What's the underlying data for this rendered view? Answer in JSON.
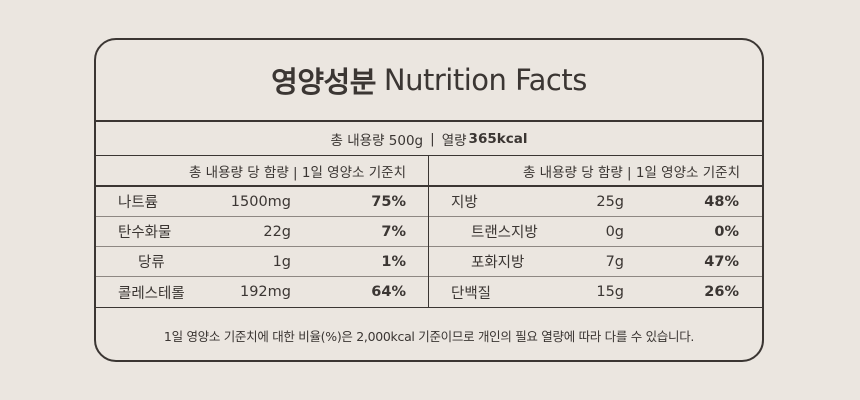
{
  "title": {
    "korean": "영양성분",
    "english": "Nutrition Facts"
  },
  "total": {
    "content": "총 내용량 500g",
    "separator": "|",
    "calories_label": "열량",
    "calories_value": "365kcal"
  },
  "headers": {
    "left": "총 내용량 당 함량 | 1일 영양소 기준치",
    "right": "총 내용량 당 함량 | 1일 영양소 기준치"
  },
  "left_rows": [
    {
      "name": "나트륨",
      "amount": "1500mg",
      "percent": "75%"
    },
    {
      "name": "탄수화물",
      "amount": "22g",
      "percent": "7%"
    },
    {
      "name": "당류",
      "amount": "1g",
      "percent": "1%"
    },
    {
      "name": "콜레스테롤",
      "amount": "192mg",
      "percent": "64%"
    }
  ],
  "right_rows": [
    {
      "name": "지방",
      "amount": "25g",
      "percent": "48%"
    },
    {
      "name": "트랜스지방",
      "amount": "0g",
      "percent": "0%"
    },
    {
      "name": "포화지방",
      "amount": "7g",
      "percent": "47%"
    },
    {
      "name": "단백질",
      "amount": "15g",
      "percent": "26%"
    }
  ],
  "footnote": "1일 영양소 기준치에 대한 비율(%)은 2,000kcal 기준이므로 개인의 필요 열량에 따라 다를 수 있습니다.",
  "colors": {
    "background": "#ebe6e0",
    "ink": "#3b3633"
  }
}
